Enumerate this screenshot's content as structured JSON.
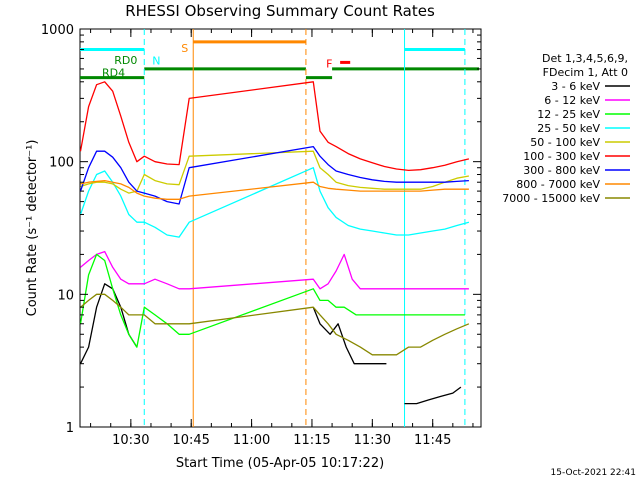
{
  "chart_data": {
    "type": "line",
    "title": "RHESSI Observing Summary Count Rates",
    "xlabel": "Start Time (05-Apr-05 10:17:22)",
    "ylabel": "Count Rate (s⁻¹ detector⁻¹)",
    "y_scale": "log",
    "ylim": [
      1,
      1000
    ],
    "xlim": [
      "10:17:22",
      "11:57:00"
    ],
    "y_ticks": [
      "1",
      "10",
      "100",
      "1000"
    ],
    "x_ticks": [
      "10:30",
      "10:45",
      "11:00",
      "11:15",
      "11:30",
      "11:45"
    ],
    "timestamp": "15-Oct-2021 22:41",
    "legend_header": [
      "Det 1,3,4,5,6,9,",
      "FDecim 1, Att 0"
    ],
    "legend_position": "right",
    "series": [
      {
        "name": "3 - 6 keV",
        "color": "#000000",
        "points": [
          [
            "10:17:30",
            3
          ],
          [
            "10:19:30",
            4
          ],
          [
            "10:21:30",
            8
          ],
          [
            "10:23:30",
            12
          ],
          [
            "10:25:30",
            11
          ],
          [
            "10:27:30",
            8
          ],
          [
            "10:29:30",
            5
          ],
          [
            "10:31:30",
            4
          ],
          [
            "10:33:20",
            null
          ],
          [
            "11:15:20",
            8
          ],
          [
            "11:17:00",
            6
          ],
          [
            "11:19:30",
            5
          ],
          [
            "11:21:30",
            6
          ],
          [
            "11:23:30",
            4
          ],
          [
            "11:25:30",
            3
          ],
          [
            "11:27:30",
            3
          ],
          [
            "11:29:30",
            3
          ],
          [
            "11:31:30",
            3
          ],
          [
            "11:33:30",
            3
          ],
          [
            "11:35:00",
            null
          ],
          [
            "11:38:00",
            1.5
          ],
          [
            "11:41:00",
            1.5
          ],
          [
            "11:44:00",
            1.6
          ],
          [
            "11:47:00",
            1.7
          ],
          [
            "11:50:00",
            1.8
          ],
          [
            "11:52:00",
            2
          ]
        ]
      },
      {
        "name": "6 - 12 keV",
        "color": "#ff00ff",
        "points": [
          [
            "10:17:30",
            16
          ],
          [
            "10:19:30",
            18
          ],
          [
            "10:21:30",
            20
          ],
          [
            "10:23:30",
            21
          ],
          [
            "10:25:30",
            16
          ],
          [
            "10:27:30",
            13
          ],
          [
            "10:29:30",
            12
          ],
          [
            "10:31:30",
            12
          ],
          [
            "10:33:20",
            12
          ],
          [
            "10:36:00",
            13
          ],
          [
            "10:39:00",
            12
          ],
          [
            "10:42:00",
            11
          ],
          [
            "10:44:30",
            11
          ],
          [
            "11:15:20",
            13
          ],
          [
            "11:17:00",
            11
          ],
          [
            "11:19:00",
            12
          ],
          [
            "11:21:00",
            15
          ],
          [
            "11:23:00",
            20
          ],
          [
            "11:25:00",
            13
          ],
          [
            "11:27:00",
            11
          ],
          [
            "11:30:00",
            11
          ],
          [
            "11:33:00",
            11
          ],
          [
            "11:36:00",
            11
          ],
          [
            "11:39:00",
            11
          ],
          [
            "11:42:00",
            11
          ],
          [
            "11:45:00",
            11
          ],
          [
            "11:48:00",
            11
          ],
          [
            "11:51:00",
            11
          ],
          [
            "11:54:00",
            11
          ]
        ]
      },
      {
        "name": "12 - 25 keV",
        "color": "#00ff00",
        "points": [
          [
            "10:17:30",
            6
          ],
          [
            "10:19:30",
            14
          ],
          [
            "10:21:30",
            20
          ],
          [
            "10:23:30",
            18
          ],
          [
            "10:25:30",
            11
          ],
          [
            "10:27:30",
            7
          ],
          [
            "10:29:30",
            5
          ],
          [
            "10:31:30",
            4
          ],
          [
            "10:33:20",
            8
          ],
          [
            "10:36:00",
            7
          ],
          [
            "10:39:00",
            6
          ],
          [
            "10:42:00",
            5
          ],
          [
            "10:44:30",
            5
          ],
          [
            "11:15:20",
            11
          ],
          [
            "11:17:00",
            9
          ],
          [
            "11:19:00",
            9
          ],
          [
            "11:21:00",
            8
          ],
          [
            "11:23:00",
            8
          ],
          [
            "11:26:00",
            7
          ],
          [
            "11:29:00",
            7
          ],
          [
            "11:32:00",
            7
          ],
          [
            "11:35:00",
            7
          ],
          [
            "11:38:00",
            7
          ],
          [
            "11:41:00",
            7
          ],
          [
            "11:44:00",
            7
          ],
          [
            "11:47:00",
            7
          ],
          [
            "11:50:00",
            7
          ],
          [
            "11:53:00",
            7
          ]
        ]
      },
      {
        "name": "25 - 50 keV",
        "color": "#00ffff",
        "points": [
          [
            "10:17:30",
            40
          ],
          [
            "10:19:30",
            60
          ],
          [
            "10:21:30",
            80
          ],
          [
            "10:23:30",
            85
          ],
          [
            "10:25:30",
            70
          ],
          [
            "10:27:30",
            55
          ],
          [
            "10:29:30",
            40
          ],
          [
            "10:31:30",
            35
          ],
          [
            "10:33:20",
            35
          ],
          [
            "10:36:00",
            32
          ],
          [
            "10:39:00",
            28
          ],
          [
            "10:42:00",
            27
          ],
          [
            "10:44:30",
            35
          ],
          [
            "11:15:20",
            90
          ],
          [
            "11:17:00",
            60
          ],
          [
            "11:19:00",
            45
          ],
          [
            "11:21:00",
            38
          ],
          [
            "11:24:00",
            33
          ],
          [
            "11:27:00",
            31
          ],
          [
            "11:30:00",
            30
          ],
          [
            "11:33:00",
            29
          ],
          [
            "11:36:00",
            28
          ],
          [
            "11:39:00",
            28
          ],
          [
            "11:42:00",
            29
          ],
          [
            "11:45:00",
            30
          ],
          [
            "11:48:00",
            31
          ],
          [
            "11:51:00",
            33
          ],
          [
            "11:54:00",
            35
          ]
        ]
      },
      {
        "name": "50 - 100 keV",
        "color": "#cccc00",
        "points": [
          [
            "10:17:30",
            65
          ],
          [
            "10:19:30",
            68
          ],
          [
            "10:21:30",
            70
          ],
          [
            "10:23:30",
            70
          ],
          [
            "10:25:30",
            68
          ],
          [
            "10:27:30",
            62
          ],
          [
            "10:29:30",
            58
          ],
          [
            "10:31:30",
            60
          ],
          [
            "10:33:20",
            80
          ],
          [
            "10:36:00",
            72
          ],
          [
            "10:39:00",
            68
          ],
          [
            "10:42:00",
            67
          ],
          [
            "10:44:30",
            110
          ],
          [
            "11:15:20",
            120
          ],
          [
            "11:17:00",
            90
          ],
          [
            "11:19:00",
            80
          ],
          [
            "11:21:00",
            70
          ],
          [
            "11:24:00",
            66
          ],
          [
            "11:27:00",
            64
          ],
          [
            "11:30:00",
            63
          ],
          [
            "11:33:00",
            62
          ],
          [
            "11:36:00",
            62
          ],
          [
            "11:39:00",
            62
          ],
          [
            "11:42:00",
            62
          ],
          [
            "11:45:00",
            65
          ],
          [
            "11:48:00",
            70
          ],
          [
            "11:51:00",
            75
          ],
          [
            "11:54:00",
            78
          ]
        ]
      },
      {
        "name": "100 - 300 keV",
        "color": "#ff0000",
        "points": [
          [
            "10:17:30",
            120
          ],
          [
            "10:19:30",
            260
          ],
          [
            "10:21:30",
            380
          ],
          [
            "10:23:30",
            400
          ],
          [
            "10:25:30",
            340
          ],
          [
            "10:27:30",
            220
          ],
          [
            "10:29:30",
            140
          ],
          [
            "10:31:30",
            100
          ],
          [
            "10:33:20",
            110
          ],
          [
            "10:36:00",
            100
          ],
          [
            "10:39:00",
            96
          ],
          [
            "10:42:00",
            95
          ],
          [
            "10:44:30",
            300
          ],
          [
            "11:15:20",
            400
          ],
          [
            "11:17:00",
            170
          ],
          [
            "11:19:00",
            140
          ],
          [
            "11:21:00",
            130
          ],
          [
            "11:24:00",
            115
          ],
          [
            "11:27:00",
            105
          ],
          [
            "11:30:00",
            98
          ],
          [
            "11:33:00",
            92
          ],
          [
            "11:36:00",
            88
          ],
          [
            "11:39:00",
            86
          ],
          [
            "11:42:00",
            87
          ],
          [
            "11:45:00",
            90
          ],
          [
            "11:48:00",
            94
          ],
          [
            "11:51:00",
            100
          ],
          [
            "11:54:00",
            105
          ]
        ]
      },
      {
        "name": "300 - 800 keV",
        "color": "#0000ff",
        "points": [
          [
            "10:17:30",
            60
          ],
          [
            "10:19:30",
            90
          ],
          [
            "10:21:30",
            120
          ],
          [
            "10:23:30",
            120
          ],
          [
            "10:25:30",
            108
          ],
          [
            "10:27:30",
            90
          ],
          [
            "10:29:30",
            70
          ],
          [
            "10:31:30",
            60
          ],
          [
            "10:33:20",
            58
          ],
          [
            "10:36:00",
            55
          ],
          [
            "10:39:00",
            50
          ],
          [
            "10:42:00",
            48
          ],
          [
            "10:44:30",
            90
          ],
          [
            "11:15:20",
            130
          ],
          [
            "11:17:00",
            110
          ],
          [
            "11:19:00",
            95
          ],
          [
            "11:21:00",
            85
          ],
          [
            "11:24:00",
            80
          ],
          [
            "11:27:00",
            76
          ],
          [
            "11:30:00",
            73
          ],
          [
            "11:33:00",
            71
          ],
          [
            "11:36:00",
            70
          ],
          [
            "11:39:00",
            70
          ],
          [
            "11:42:00",
            70
          ],
          [
            "11:45:00",
            70
          ],
          [
            "11:48:00",
            70
          ],
          [
            "11:51:00",
            71
          ],
          [
            "11:54:00",
            72
          ]
        ]
      },
      {
        "name": "800 - 7000 keV",
        "color": "#ff8800",
        "points": [
          [
            "10:17:30",
            68
          ],
          [
            "10:19:30",
            70
          ],
          [
            "10:21:30",
            71
          ],
          [
            "10:23:30",
            72
          ],
          [
            "10:25:30",
            70
          ],
          [
            "10:27:30",
            68
          ],
          [
            "10:29:30",
            64
          ],
          [
            "10:31:30",
            58
          ],
          [
            "10:33:20",
            55
          ],
          [
            "10:36:00",
            53
          ],
          [
            "10:39:00",
            52
          ],
          [
            "10:42:00",
            52
          ],
          [
            "10:44:30",
            55
          ],
          [
            "11:15:20",
            70
          ],
          [
            "11:17:00",
            65
          ],
          [
            "11:19:00",
            63
          ],
          [
            "11:21:00",
            62
          ],
          [
            "11:24:00",
            61
          ],
          [
            "11:27:00",
            60
          ],
          [
            "11:30:00",
            60
          ],
          [
            "11:33:00",
            60
          ],
          [
            "11:36:00",
            60
          ],
          [
            "11:39:00",
            60
          ],
          [
            "11:42:00",
            60
          ],
          [
            "11:45:00",
            61
          ],
          [
            "11:48:00",
            62
          ],
          [
            "11:51:00",
            62
          ],
          [
            "11:54:00",
            62
          ]
        ]
      },
      {
        "name": "7000 - 15000 keV",
        "color": "#888800",
        "points": [
          [
            "10:17:30",
            8
          ],
          [
            "10:19:30",
            9
          ],
          [
            "10:21:30",
            10
          ],
          [
            "10:23:30",
            10
          ],
          [
            "10:25:30",
            9
          ],
          [
            "10:27:30",
            8
          ],
          [
            "10:29:30",
            7
          ],
          [
            "10:31:30",
            7
          ],
          [
            "10:33:20",
            7
          ],
          [
            "10:36:00",
            6
          ],
          [
            "10:39:00",
            6
          ],
          [
            "10:42:00",
            6
          ],
          [
            "10:44:30",
            6
          ],
          [
            "11:15:20",
            8
          ],
          [
            "11:17:00",
            7
          ],
          [
            "11:19:00",
            6
          ],
          [
            "11:21:00",
            5
          ],
          [
            "11:24:00",
            4.5
          ],
          [
            "11:27:00",
            4
          ],
          [
            "11:30:00",
            3.5
          ],
          [
            "11:33:00",
            3.5
          ],
          [
            "11:36:00",
            3.5
          ],
          [
            "11:39:00",
            4
          ],
          [
            "11:42:00",
            4
          ],
          [
            "11:45:00",
            4.5
          ],
          [
            "11:48:00",
            5
          ],
          [
            "11:51:00",
            5.5
          ],
          [
            "11:54:00",
            6
          ]
        ]
      }
    ],
    "flag_bars": [
      {
        "label": "N",
        "color": "#00ffff",
        "y": 700,
        "segments": [
          [
            "10:17:22",
            "10:33:20"
          ],
          [
            "11:38:00",
            "11:53:00"
          ]
        ]
      },
      {
        "label": "S",
        "color": "#ff8800",
        "y": 800,
        "segments": [
          [
            "10:45:30",
            "11:13:30"
          ]
        ]
      },
      {
        "label": "F",
        "color": "#ff0000",
        "y": 560,
        "segments": [
          [
            "11:22:00",
            "11:24:30"
          ]
        ]
      },
      {
        "label": "RD0",
        "color": "#008800",
        "y": 500,
        "segments": [
          [
            "10:33:20",
            "11:13:30"
          ],
          [
            "11:20:00",
            "11:56:30"
          ]
        ]
      },
      {
        "label": "RD4",
        "color": "#008800",
        "y": 430,
        "segments": [
          [
            "10:17:22",
            "10:33:20"
          ],
          [
            "11:13:30",
            "11:20:00"
          ]
        ]
      }
    ],
    "vlines": [
      {
        "time": "10:33:20",
        "color": "#00ffff",
        "style": "dashed"
      },
      {
        "time": "10:45:30",
        "color": "#ff8800",
        "style": "solid"
      },
      {
        "time": "11:13:30",
        "color": "#ff8800",
        "style": "dashed"
      },
      {
        "time": "11:38:00",
        "color": "#00ffff",
        "style": "solid"
      },
      {
        "time": "11:53:00",
        "color": "#00ffff",
        "style": "dashed"
      }
    ]
  }
}
